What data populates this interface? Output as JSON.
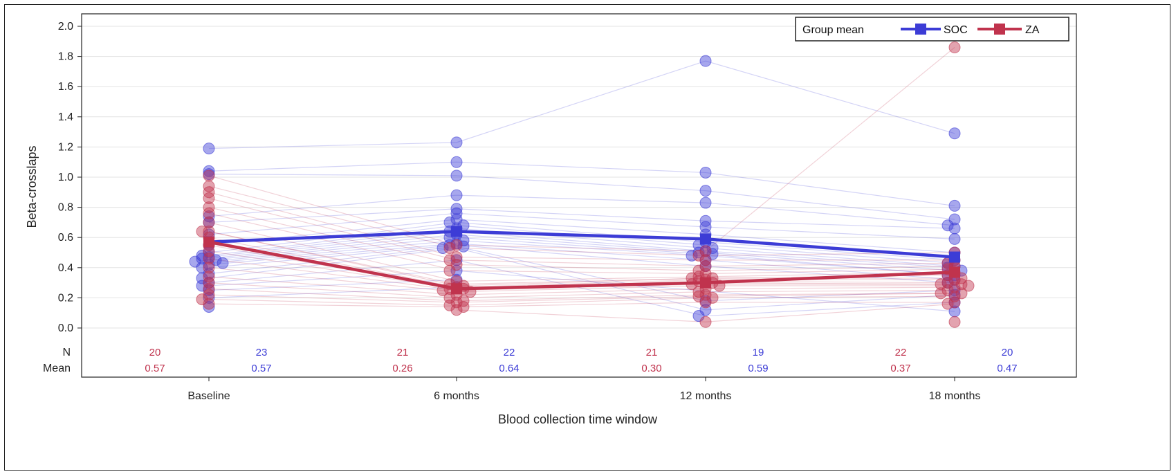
{
  "chart_data": {
    "type": "line",
    "xlabel": "Blood collection time window",
    "ylabel": "Beta-crosslaps",
    "categories": [
      "Baseline",
      "6 months",
      "12 months",
      "18 months"
    ],
    "ylim": [
      0.0,
      2.0
    ],
    "y_ticks": [
      "0.0",
      "0.2",
      "0.4",
      "0.6",
      "0.8",
      "1.0",
      "1.2",
      "1.4",
      "1.6",
      "1.8",
      "2.0"
    ],
    "grid": true,
    "legend": {
      "position": "top-right",
      "title": "Group mean",
      "entries": [
        "SOC",
        "ZA"
      ]
    },
    "colors": {
      "SOC": "#3c3cd6",
      "ZA": "#c0334d"
    },
    "table_row_labels": [
      "N",
      "Mean"
    ],
    "stats": {
      "ZA": {
        "N": [
          "20",
          "21",
          "21",
          "22"
        ],
        "Mean": [
          "0.57",
          "0.26",
          "0.30",
          "0.37"
        ]
      },
      "SOC": {
        "N": [
          "23",
          "22",
          "19",
          "20"
        ],
        "Mean": [
          "0.57",
          "0.64",
          "0.59",
          "0.47"
        ]
      }
    },
    "series": [
      {
        "name": "SOC",
        "values": [
          0.57,
          0.64,
          0.59,
          0.47
        ]
      },
      {
        "name": "ZA",
        "values": [
          0.57,
          0.26,
          0.3,
          0.37
        ]
      }
    ],
    "individual_points": {
      "SOC": [
        [
          1.19,
          1.04,
          1.02,
          0.74,
          0.7,
          0.62,
          0.55,
          0.5,
          0.48,
          0.47,
          0.46,
          0.45,
          0.44,
          0.43,
          0.42,
          0.4,
          0.36,
          0.33,
          0.3,
          0.28,
          0.25,
          0.2,
          0.14
        ],
        [
          1.23,
          1.1,
          1.01,
          0.88,
          0.79,
          0.76,
          0.72,
          0.7,
          0.68,
          0.66,
          0.64,
          0.62,
          0.6,
          0.58,
          0.56,
          0.55,
          0.54,
          0.53,
          0.45,
          0.38,
          0.32,
          0.27
        ],
        [
          1.77,
          1.03,
          0.91,
          0.83,
          0.71,
          0.67,
          0.62,
          0.57,
          0.55,
          0.53,
          0.51,
          0.5,
          0.49,
          0.48,
          0.45,
          0.41,
          0.18,
          0.12,
          0.08
        ],
        [
          1.29,
          0.81,
          0.72,
          0.68,
          0.66,
          0.59,
          0.5,
          0.45,
          0.43,
          0.41,
          0.4,
          0.38,
          0.35,
          0.35,
          0.32,
          0.3,
          0.25,
          0.22,
          0.17,
          0.11
        ]
      ],
      "ZA": [
        [
          1.01,
          0.94,
          0.9,
          0.86,
          0.8,
          0.76,
          0.7,
          0.64,
          0.64,
          0.6,
          0.55,
          0.51,
          0.46,
          0.4,
          0.34,
          0.3,
          0.26,
          0.22,
          0.19,
          0.16
        ],
        [
          0.55,
          0.53,
          0.47,
          0.45,
          0.42,
          0.38,
          0.31,
          0.29,
          0.28,
          0.27,
          0.26,
          0.26,
          0.25,
          0.24,
          0.22,
          0.2,
          0.18,
          0.17,
          0.15,
          0.14,
          0.12
        ],
        [
          0.51,
          0.48,
          0.45,
          0.41,
          0.38,
          0.36,
          0.34,
          0.33,
          0.33,
          0.32,
          0.31,
          0.3,
          0.29,
          0.28,
          0.26,
          0.24,
          0.22,
          0.21,
          0.2,
          0.17,
          0.04
        ],
        [
          1.86,
          0.5,
          0.45,
          0.43,
          0.41,
          0.39,
          0.37,
          0.35,
          0.33,
          0.32,
          0.3,
          0.29,
          0.29,
          0.28,
          0.27,
          0.25,
          0.23,
          0.23,
          0.21,
          0.17,
          0.16,
          0.04
        ]
      ]
    }
  }
}
